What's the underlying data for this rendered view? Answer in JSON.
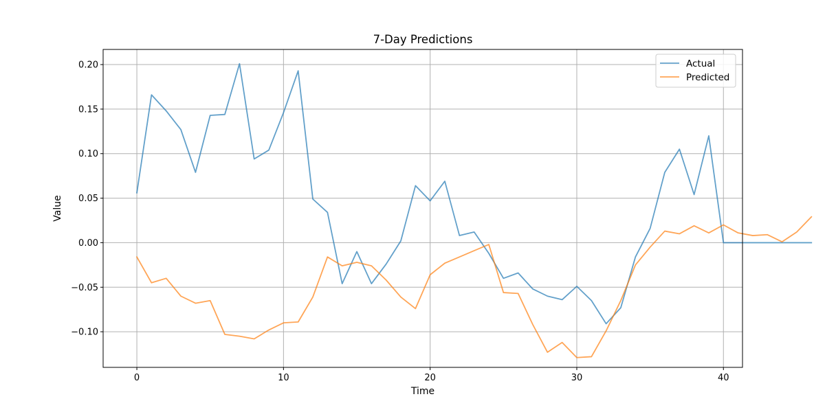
{
  "chart_data": {
    "type": "line",
    "title": "7-Day Predictions",
    "xlabel": "Time",
    "ylabel": "Value",
    "xlim": [
      -2.3,
      41.3
    ],
    "ylim": [
      -0.14,
      0.217
    ],
    "xticks": [
      0,
      10,
      20,
      30,
      40
    ],
    "yticks": [
      -0.1,
      -0.05,
      0.0,
      0.05,
      0.1,
      0.15,
      0.2
    ],
    "ytick_labels": [
      "−0.10",
      "−0.05",
      "0.00",
      "0.05",
      "0.10",
      "0.15",
      "0.20"
    ],
    "grid": true,
    "legend": "top-right",
    "series": [
      {
        "name": "Actual",
        "color": "#1f77b4",
        "x": [
          0,
          1,
          2,
          3,
          4,
          5,
          6,
          7,
          8,
          9,
          10,
          11,
          12,
          13,
          14,
          15,
          16,
          17,
          18,
          19,
          20,
          21,
          22,
          23,
          24,
          25,
          26,
          27,
          28,
          29,
          30,
          31,
          32,
          33,
          34,
          35,
          36,
          37,
          38,
          39,
          40,
          41,
          42,
          43,
          44,
          45,
          46
        ],
        "values": [
          0.056,
          0.166,
          0.148,
          0.127,
          0.079,
          0.143,
          0.144,
          0.201,
          0.094,
          0.104,
          0.146,
          0.193,
          0.049,
          0.034,
          -0.046,
          -0.01,
          -0.046,
          -0.024,
          0.002,
          0.064,
          0.047,
          0.069,
          0.008,
          0.012,
          -0.012,
          -0.04,
          -0.034,
          -0.052,
          -0.06,
          -0.064,
          -0.049,
          -0.065,
          -0.091,
          -0.073,
          -0.016,
          0.016,
          0.079,
          0.105,
          0.054,
          0.12,
          0.0,
          0.0,
          0.0,
          0.0,
          0.0,
          0.0,
          0.0
        ]
      },
      {
        "name": "Predicted",
        "color": "#ff7f0e",
        "x": [
          0,
          1,
          2,
          3,
          4,
          5,
          6,
          7,
          8,
          9,
          10,
          11,
          12,
          13,
          14,
          15,
          16,
          17,
          18,
          19,
          20,
          21,
          22,
          23,
          24,
          25,
          26,
          27,
          28,
          29,
          30,
          31,
          32,
          33,
          34,
          35,
          36,
          37,
          38,
          39,
          40,
          41,
          42,
          43,
          44,
          45,
          46
        ],
        "values": [
          -0.016,
          -0.045,
          -0.04,
          -0.06,
          -0.068,
          -0.065,
          -0.103,
          -0.105,
          -0.108,
          -0.098,
          -0.09,
          -0.089,
          -0.061,
          -0.016,
          -0.026,
          -0.022,
          -0.026,
          -0.042,
          -0.061,
          -0.074,
          -0.036,
          -0.023,
          -0.016,
          -0.009,
          -0.002,
          -0.056,
          -0.057,
          -0.092,
          -0.123,
          -0.112,
          -0.129,
          -0.128,
          -0.099,
          -0.065,
          -0.025,
          -0.005,
          0.013,
          0.01,
          0.019,
          0.011,
          0.02,
          0.011,
          0.008,
          0.009,
          0.001,
          0.012,
          0.029
        ]
      }
    ]
  }
}
